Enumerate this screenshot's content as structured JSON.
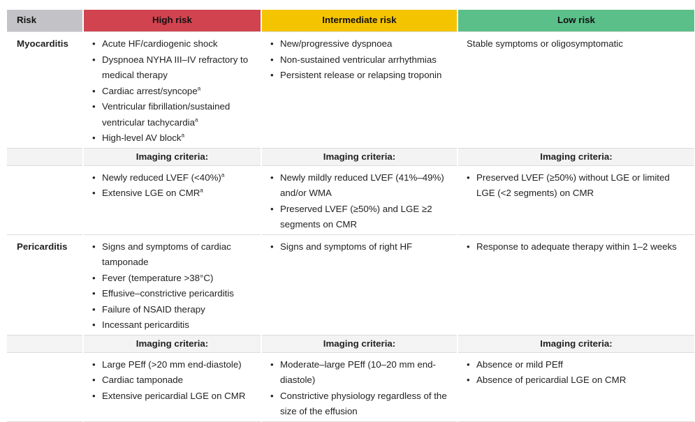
{
  "header": [
    "Risk",
    "High risk",
    "Intermediate risk",
    "Low risk"
  ],
  "sections": [
    {
      "label": "Myocarditis",
      "clinical": [
        [
          "Acute HF/cardiogenic shock",
          "Dyspnoea NYHA III–IV refractory to medical therapy",
          {
            "text": "Cardiac arrest/syncope",
            "sup": "a"
          },
          {
            "text": "Ventricular fibrillation/sustained ventricular tachycardia",
            "sup": "a"
          },
          {
            "text": "High-level AV block",
            "sup": "a"
          }
        ],
        [
          "New/progressive dyspnoea",
          "Non-sustained ventricular arrhythmias",
          "Persistent release or relapsing troponin"
        ],
        "Stable symptoms or oligosymptomatic"
      ],
      "imaging": [
        {
          "heading": "Imaging criteria:",
          "items": [
            {
              "text": "Newly reduced LVEF (<40%)",
              "sup": "a"
            },
            {
              "text": "Extensive LGE on CMR",
              "sup": "a"
            }
          ]
        },
        {
          "heading": "Imaging criteria:",
          "items": [
            "Newly mildly reduced LVEF (41%–49%) and/or WMA",
            "Preserved LVEF (≥50%) and LGE ≥2 segments on CMR"
          ]
        },
        {
          "heading": "Imaging criteria:",
          "items": [
            "Preserved LVEF (≥50%) without LGE or limited LGE (<2 segments) on CMR"
          ]
        }
      ]
    },
    {
      "label": "Pericarditis",
      "clinical": [
        [
          "Signs and symptoms of cardiac tamponade",
          "Fever (temperature >38°C)",
          "Effusive–constrictive pericarditis",
          "Failure of NSAID therapy",
          "Incessant pericarditis"
        ],
        [
          "Signs and symptoms of right HF"
        ],
        [
          "Response to adequate therapy within 1–2 weeks"
        ]
      ],
      "imaging": [
        {
          "heading": "Imaging criteria:",
          "items": [
            "Large PEff (>20 mm end-diastole)",
            "Cardiac tamponade",
            "Extensive pericardial LGE on CMR"
          ]
        },
        {
          "heading": "Imaging criteria:",
          "items": [
            "Moderate–large PEff (10–20 mm end-diastole)",
            "Constrictive physiology regardless of the size of the effusion"
          ]
        },
        {
          "heading": "Imaging criteria:",
          "items": [
            "Absence or mild PEff",
            "Absence of pericardial LGE on CMR"
          ]
        }
      ]
    }
  ]
}
